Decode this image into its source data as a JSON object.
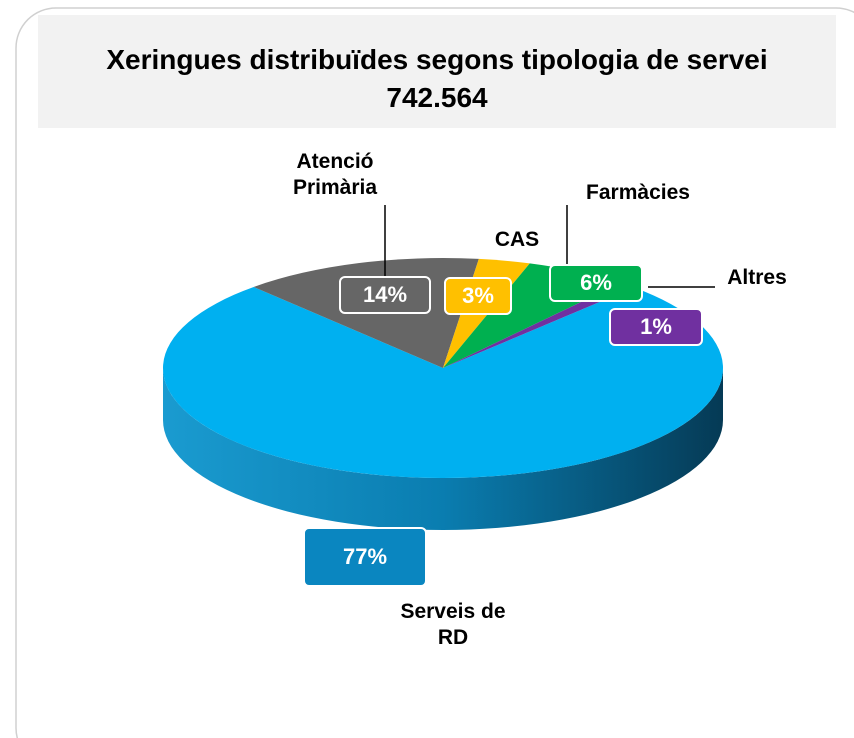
{
  "chart_data": {
    "type": "pie",
    "title": "Xeringues distribuïdes segons tipologia de servei",
    "subtitle": "742.564",
    "categories": [
      "Serveis de RD",
      "Atenció Primària",
      "CAS",
      "Farmàcies",
      "Altres"
    ],
    "values": [
      77,
      14,
      3,
      6,
      1
    ],
    "value_labels": [
      "77%",
      "14%",
      "3%",
      "6%",
      "1%"
    ],
    "colors": [
      "#00b0f0",
      "#666666",
      "#ffc000",
      "#00b050",
      "#7030a0"
    ]
  }
}
